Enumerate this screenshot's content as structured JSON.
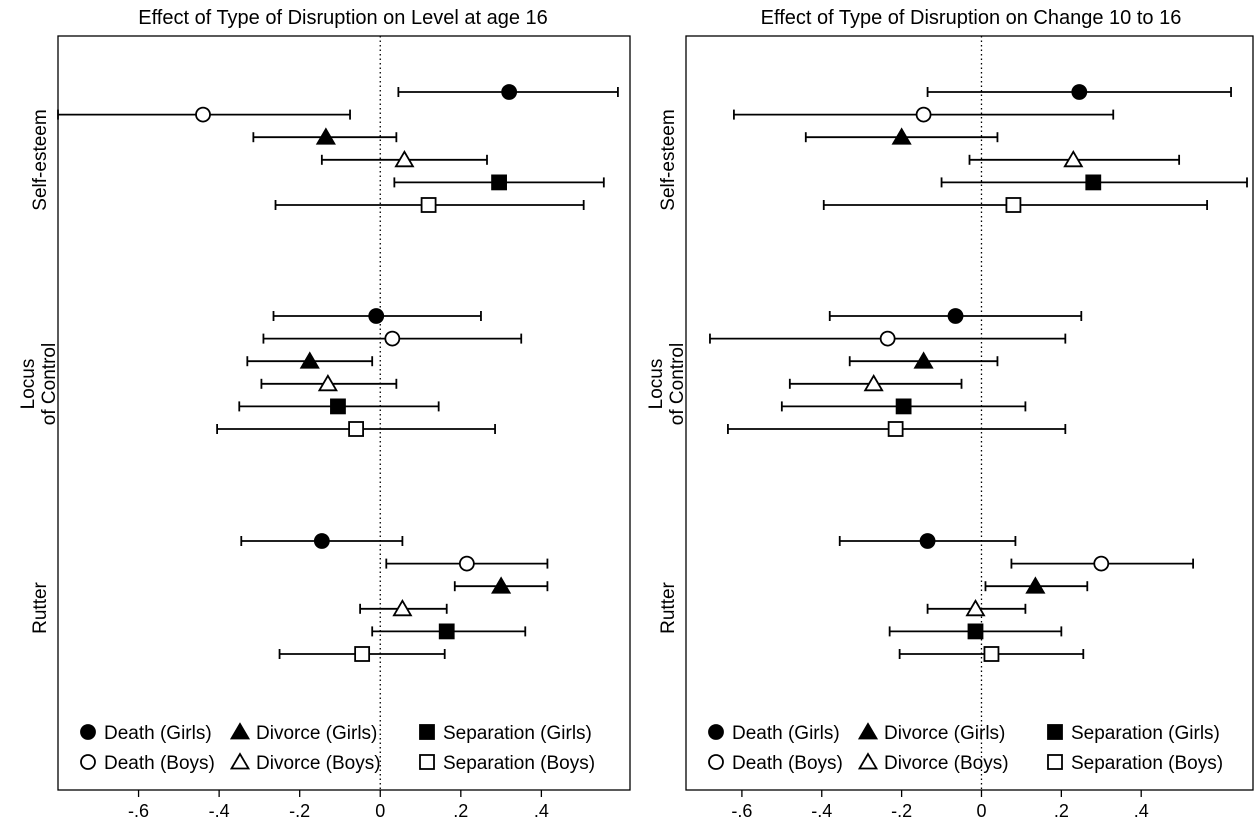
{
  "chart_data": [
    {
      "type": "scatter",
      "title": "Effect of Type of Disruption on Level at age 16",
      "xlabel": "",
      "ylabel": "",
      "xlim": [
        -0.8,
        0.62
      ],
      "xticks": [
        -0.6,
        -0.4,
        -0.2,
        0,
        0.2,
        0.4
      ],
      "xtick_labels": [
        "-.6",
        "-.4",
        "-.2",
        "0",
        ".2",
        ".4"
      ],
      "reference_line": 0,
      "groups": [
        {
          "label": "Self-esteem",
          "lines": [
            "Self-esteem"
          ]
        },
        {
          "label": "Locus of Control",
          "lines": [
            "Locus",
            "of Control"
          ]
        },
        {
          "label": "Rutter",
          "lines": [
            "Rutter"
          ]
        }
      ],
      "series": [
        {
          "name": "Death (Girls)",
          "marker": "circle",
          "filled": true,
          "points": [
            {
              "est": 0.32,
              "lo": 0.045,
              "hi": 0.59
            },
            {
              "est": -0.01,
              "lo": -0.265,
              "hi": 0.25
            },
            {
              "est": -0.145,
              "lo": -0.345,
              "hi": 0.055
            }
          ]
        },
        {
          "name": "Death (Boys)",
          "marker": "circle",
          "filled": false,
          "points": [
            {
              "est": -0.44,
              "lo": -0.8,
              "hi": -0.075
            },
            {
              "est": 0.03,
              "lo": -0.29,
              "hi": 0.35
            },
            {
              "est": 0.215,
              "lo": 0.015,
              "hi": 0.415
            }
          ]
        },
        {
          "name": "Divorce (Girls)",
          "marker": "triangle",
          "filled": true,
          "points": [
            {
              "est": -0.135,
              "lo": -0.315,
              "hi": 0.04
            },
            {
              "est": -0.175,
              "lo": -0.33,
              "hi": -0.02
            },
            {
              "est": 0.3,
              "lo": 0.185,
              "hi": 0.415
            }
          ]
        },
        {
          "name": "Divorce (Boys)",
          "marker": "triangle",
          "filled": false,
          "points": [
            {
              "est": 0.06,
              "lo": -0.145,
              "hi": 0.265
            },
            {
              "est": -0.13,
              "lo": -0.295,
              "hi": 0.04
            },
            {
              "est": 0.055,
              "lo": -0.05,
              "hi": 0.165
            }
          ]
        },
        {
          "name": "Separation (Girls)",
          "marker": "square",
          "filled": true,
          "points": [
            {
              "est": 0.295,
              "lo": 0.035,
              "hi": 0.555
            },
            {
              "est": -0.105,
              "lo": -0.35,
              "hi": 0.145
            },
            {
              "est": 0.165,
              "lo": -0.02,
              "hi": 0.36
            }
          ]
        },
        {
          "name": "Separation (Boys)",
          "marker": "square",
          "filled": false,
          "points": [
            {
              "est": 0.12,
              "lo": -0.26,
              "hi": 0.505
            },
            {
              "est": -0.06,
              "lo": -0.405,
              "hi": 0.285
            },
            {
              "est": -0.045,
              "lo": -0.25,
              "hi": 0.16
            }
          ]
        }
      ],
      "legend_position": "bottom"
    },
    {
      "type": "scatter",
      "title": "Effect of Type of Disruption on Change 10 to 16",
      "xlabel": "",
      "ylabel": "",
      "xlim": [
        -0.74,
        0.68
      ],
      "xticks": [
        -0.6,
        -0.4,
        -0.2,
        0,
        0.2,
        0.4
      ],
      "xtick_labels": [
        "-.6",
        "-.4",
        "-.2",
        "0",
        ".2",
        ".4"
      ],
      "reference_line": 0,
      "groups": [
        {
          "label": "Self-esteem",
          "lines": [
            "Self-esteem"
          ]
        },
        {
          "label": "Locus of Control",
          "lines": [
            "Locus",
            "of Control"
          ]
        },
        {
          "label": "Rutter",
          "lines": [
            "Rutter"
          ]
        }
      ],
      "series": [
        {
          "name": "Death (Girls)",
          "marker": "circle",
          "filled": true,
          "points": [
            {
              "est": 0.245,
              "lo": -0.135,
              "hi": 0.625
            },
            {
              "est": -0.065,
              "lo": -0.38,
              "hi": 0.25
            },
            {
              "est": -0.135,
              "lo": -0.355,
              "hi": 0.085
            }
          ]
        },
        {
          "name": "Death (Boys)",
          "marker": "circle",
          "filled": false,
          "points": [
            {
              "est": -0.145,
              "lo": -0.62,
              "hi": 0.33
            },
            {
              "est": -0.235,
              "lo": -0.68,
              "hi": 0.21
            },
            {
              "est": 0.3,
              "lo": 0.075,
              "hi": 0.53
            }
          ]
        },
        {
          "name": "Divorce (Girls)",
          "marker": "triangle",
          "filled": true,
          "points": [
            {
              "est": -0.2,
              "lo": -0.44,
              "hi": 0.04
            },
            {
              "est": -0.145,
              "lo": -0.33,
              "hi": 0.04
            },
            {
              "est": 0.135,
              "lo": 0.01,
              "hi": 0.265
            }
          ]
        },
        {
          "name": "Divorce (Boys)",
          "marker": "triangle",
          "filled": false,
          "points": [
            {
              "est": 0.23,
              "lo": -0.03,
              "hi": 0.495
            },
            {
              "est": -0.27,
              "lo": -0.48,
              "hi": -0.05
            },
            {
              "est": -0.015,
              "lo": -0.135,
              "hi": 0.11
            }
          ]
        },
        {
          "name": "Separation (Girls)",
          "marker": "square",
          "filled": true,
          "points": [
            {
              "est": 0.28,
              "lo": -0.1,
              "hi": 0.665
            },
            {
              "est": -0.195,
              "lo": -0.5,
              "hi": 0.11
            },
            {
              "est": -0.015,
              "lo": -0.23,
              "hi": 0.2
            }
          ]
        },
        {
          "name": "Separation (Boys)",
          "marker": "square",
          "filled": false,
          "points": [
            {
              "est": 0.08,
              "lo": -0.395,
              "hi": 0.565
            },
            {
              "est": -0.215,
              "lo": -0.635,
              "hi": 0.21
            },
            {
              "est": 0.025,
              "lo": -0.205,
              "hi": 0.255
            }
          ]
        }
      ],
      "legend_position": "bottom"
    }
  ]
}
